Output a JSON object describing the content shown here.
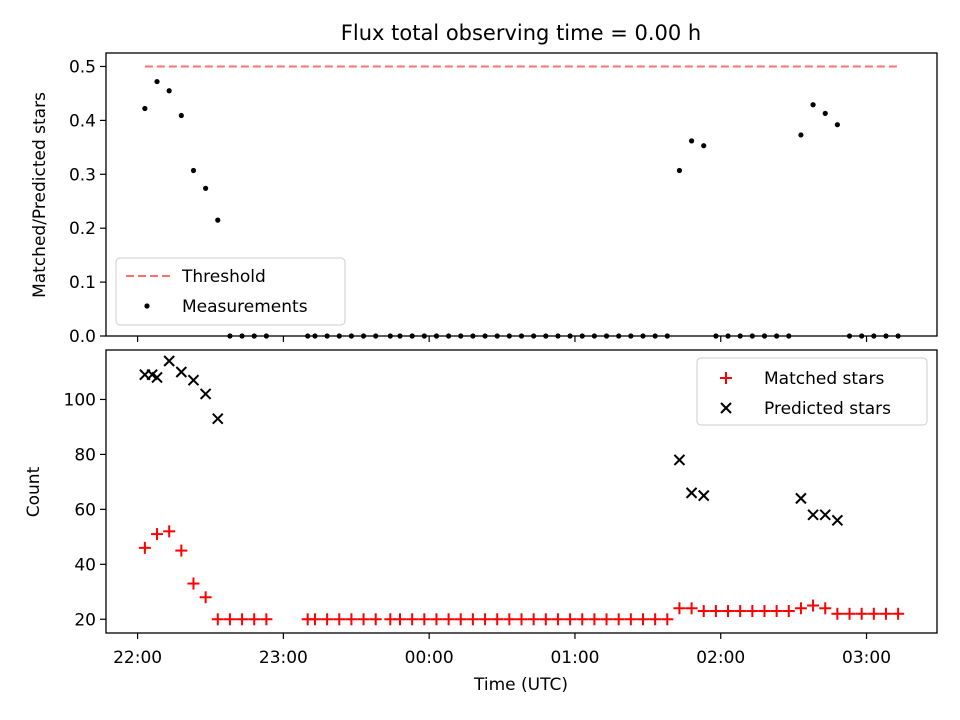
{
  "chart_data": [
    {
      "type": "scatter",
      "title": "Flux total observing time = 0.00 h",
      "xlabel": "",
      "ylabel": "Matched/Predicted stars",
      "xlim": [
        "21:47",
        "03:29"
      ],
      "ylim": [
        0.0,
        0.525
      ],
      "y_ticks": [
        "0.0",
        "0.1",
        "0.2",
        "0.3",
        "0.4",
        "0.5"
      ],
      "grid": false,
      "legend_position": "lower-left",
      "threshold": {
        "name": "Threshold",
        "value": 0.5,
        "color": "#ff7070",
        "x_start": "22:03",
        "x_end": "03:14"
      },
      "series": [
        {
          "name": "Measurements",
          "color": "#000000",
          "points": [
            [
              "22:03",
              0.422
            ],
            [
              "22:08",
              0.472
            ],
            [
              "22:13",
              0.455
            ],
            [
              "22:18",
              0.409
            ],
            [
              "22:23",
              0.307
            ],
            [
              "22:28",
              0.274
            ],
            [
              "22:33",
              0.215
            ],
            [
              "22:38",
              0.0
            ],
            [
              "22:43",
              0.0
            ],
            [
              "22:48",
              0.0
            ],
            [
              "22:53",
              0.0
            ],
            [
              "23:10",
              0.0
            ],
            [
              "23:13",
              0.0
            ],
            [
              "23:18",
              0.0
            ],
            [
              "23:23",
              0.0
            ],
            [
              "23:28",
              0.0
            ],
            [
              "23:33",
              0.0
            ],
            [
              "23:38",
              0.0
            ],
            [
              "23:44",
              0.0
            ],
            [
              "23:48",
              0.0
            ],
            [
              "23:53",
              0.0
            ],
            [
              "23:58",
              0.0
            ],
            [
              "00:03",
              0.0
            ],
            [
              "00:08",
              0.0
            ],
            [
              "00:13",
              0.0
            ],
            [
              "00:18",
              0.0
            ],
            [
              "00:23",
              0.0
            ],
            [
              "00:28",
              0.0
            ],
            [
              "00:33",
              0.0
            ],
            [
              "00:38",
              0.0
            ],
            [
              "00:43",
              0.0
            ],
            [
              "00:48",
              0.0
            ],
            [
              "00:53",
              0.0
            ],
            [
              "00:58",
              0.0
            ],
            [
              "01:03",
              0.0
            ],
            [
              "01:08",
              0.0
            ],
            [
              "01:13",
              0.0
            ],
            [
              "01:18",
              0.0
            ],
            [
              "01:23",
              0.0
            ],
            [
              "01:28",
              0.0
            ],
            [
              "01:33",
              0.0
            ],
            [
              "01:38",
              0.0
            ],
            [
              "01:43",
              0.307
            ],
            [
              "01:48",
              0.362
            ],
            [
              "01:53",
              0.353
            ],
            [
              "01:58",
              0.0
            ],
            [
              "02:03",
              0.0
            ],
            [
              "02:08",
              0.0
            ],
            [
              "02:13",
              0.0
            ],
            [
              "02:18",
              0.0
            ],
            [
              "02:23",
              0.0
            ],
            [
              "02:28",
              0.0
            ],
            [
              "02:33",
              0.373
            ],
            [
              "02:38",
              0.429
            ],
            [
              "02:43",
              0.413
            ],
            [
              "02:48",
              0.392
            ],
            [
              "02:53",
              0.0
            ],
            [
              "02:58",
              0.0
            ],
            [
              "03:03",
              0.0
            ],
            [
              "03:08",
              0.0
            ],
            [
              "03:13",
              0.0
            ]
          ]
        }
      ]
    },
    {
      "type": "scatter",
      "title": "",
      "xlabel": "Time (UTC)",
      "ylabel": "Count",
      "xlim": [
        "21:47",
        "03:29"
      ],
      "ylim": [
        15,
        118
      ],
      "x_ticks": [
        "22:00",
        "23:00",
        "00:00",
        "01:00",
        "02:00",
        "03:00"
      ],
      "y_ticks": [
        "20",
        "40",
        "60",
        "80",
        "100"
      ],
      "grid": false,
      "legend_position": "upper-right",
      "series": [
        {
          "name": "Matched stars",
          "marker": "plus",
          "color": "#ff0000",
          "points": [
            [
              "22:03",
              46
            ],
            [
              "22:08",
              51
            ],
            [
              "22:13",
              52
            ],
            [
              "22:18",
              45
            ],
            [
              "22:23",
              33
            ],
            [
              "22:28",
              28
            ],
            [
              "22:33",
              20
            ],
            [
              "22:38",
              20
            ],
            [
              "22:43",
              20
            ],
            [
              "22:48",
              20
            ],
            [
              "22:53",
              20
            ],
            [
              "23:10",
              20
            ],
            [
              "23:13",
              20
            ],
            [
              "23:18",
              20
            ],
            [
              "23:23",
              20
            ],
            [
              "23:28",
              20
            ],
            [
              "23:33",
              20
            ],
            [
              "23:38",
              20
            ],
            [
              "23:44",
              20
            ],
            [
              "23:48",
              20
            ],
            [
              "23:53",
              20
            ],
            [
              "23:58",
              20
            ],
            [
              "00:03",
              20
            ],
            [
              "00:08",
              20
            ],
            [
              "00:13",
              20
            ],
            [
              "00:18",
              20
            ],
            [
              "00:23",
              20
            ],
            [
              "00:28",
              20
            ],
            [
              "00:33",
              20
            ],
            [
              "00:38",
              20
            ],
            [
              "00:43",
              20
            ],
            [
              "00:48",
              20
            ],
            [
              "00:53",
              20
            ],
            [
              "00:58",
              20
            ],
            [
              "01:03",
              20
            ],
            [
              "01:08",
              20
            ],
            [
              "01:13",
              20
            ],
            [
              "01:18",
              20
            ],
            [
              "01:23",
              20
            ],
            [
              "01:28",
              20
            ],
            [
              "01:33",
              20
            ],
            [
              "01:38",
              20
            ],
            [
              "01:43",
              24
            ],
            [
              "01:48",
              24
            ],
            [
              "01:53",
              23
            ],
            [
              "01:58",
              23
            ],
            [
              "02:03",
              23
            ],
            [
              "02:08",
              23
            ],
            [
              "02:13",
              23
            ],
            [
              "02:18",
              23
            ],
            [
              "02:23",
              23
            ],
            [
              "02:28",
              23
            ],
            [
              "02:33",
              24
            ],
            [
              "02:38",
              25
            ],
            [
              "02:43",
              24
            ],
            [
              "02:48",
              22
            ],
            [
              "02:53",
              22
            ],
            [
              "02:58",
              22
            ],
            [
              "03:03",
              22
            ],
            [
              "03:08",
              22
            ],
            [
              "03:13",
              22
            ]
          ]
        },
        {
          "name": "Predicted stars",
          "marker": "x",
          "color": "#000000",
          "points": [
            [
              "22:03",
              109
            ],
            [
              "22:06",
              109
            ],
            [
              "22:08",
              108
            ],
            [
              "22:13",
              114
            ],
            [
              "22:18",
              110
            ],
            [
              "22:23",
              107
            ],
            [
              "22:28",
              102
            ],
            [
              "22:33",
              93
            ],
            [
              "01:43",
              78
            ],
            [
              "01:48",
              66
            ],
            [
              "01:53",
              65
            ],
            [
              "02:33",
              64
            ],
            [
              "02:38",
              58
            ],
            [
              "02:43",
              58
            ],
            [
              "02:48",
              56
            ]
          ]
        }
      ]
    }
  ]
}
